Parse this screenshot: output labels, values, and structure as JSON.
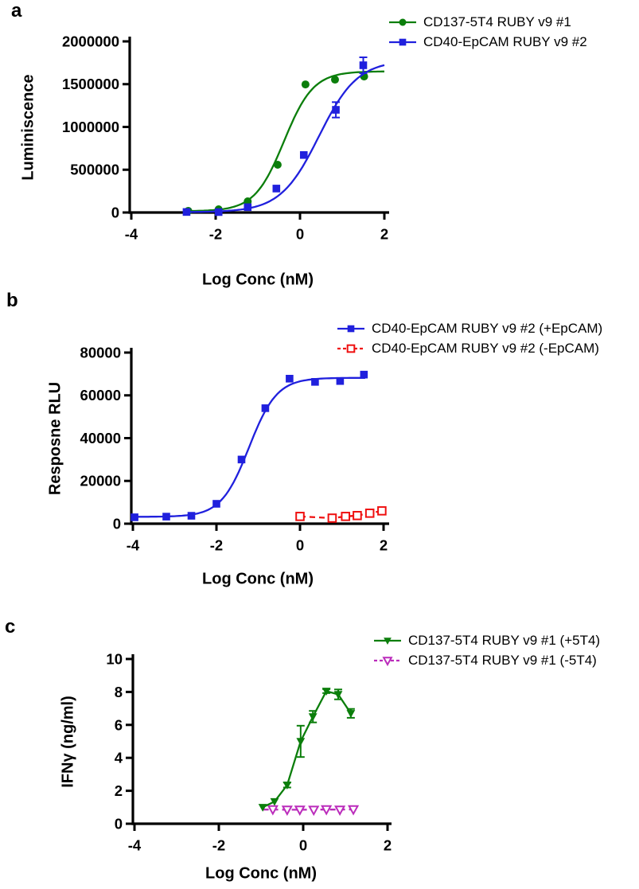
{
  "chart_data": [
    {
      "type": "line",
      "letter": "a",
      "x_axis": {
        "title": "Log Conc (nM)",
        "min": -4,
        "max": 2,
        "ticks": [
          -4,
          -2,
          0,
          2
        ]
      },
      "y_axis": {
        "title": "Luminiscence",
        "min": 0,
        "max": 2000000,
        "ticks": [
          0,
          500000,
          1000000,
          1500000,
          2000000
        ]
      },
      "legend_position": "top-right",
      "grid": false,
      "series": [
        {
          "name": "CD137-5T4 RUBY v9 #1",
          "color": "#0b7e0b",
          "marker": "circle",
          "marker_fill": "filled",
          "line": "solid",
          "curve": "sigmoid",
          "fit": {
            "bottom": 15000,
            "top": 1650000,
            "logec50": -0.38,
            "hill": 1.25,
            "x_from": -2.7,
            "x_to": 2.0
          },
          "x": [
            -2.65,
            -1.93,
            -1.24,
            -0.53,
            0.13,
            0.83,
            1.52
          ],
          "y": [
            19000,
            37000,
            130000,
            558000,
            1497000,
            1553000,
            1590000
          ]
        },
        {
          "name": "CD40-EpCAM RUBY v9 #2",
          "color": "#2020dd",
          "marker": "square",
          "marker_fill": "filled",
          "line": "solid",
          "curve": "sigmoid",
          "fit": {
            "bottom": 4000,
            "top": 1780000,
            "logec50": 0.45,
            "hill": 0.95,
            "x_from": -2.72,
            "x_to": 2.0
          },
          "x": [
            -2.69,
            -1.93,
            -1.24,
            -0.56,
            0.09,
            0.85,
            1.5
          ],
          "y": [
            6000,
            5000,
            62000,
            280000,
            672000,
            1200000,
            1721000
          ],
          "err": [
            0,
            0,
            0,
            0,
            0,
            90000,
            93000
          ]
        }
      ]
    },
    {
      "type": "line",
      "letter": "b",
      "x_axis": {
        "title": "Log Conc (nM)",
        "min": -4,
        "max": 2,
        "ticks": [
          -4,
          -2,
          0,
          2
        ]
      },
      "y_axis": {
        "title": "Resposne RLU",
        "min": 0,
        "max": 80000,
        "ticks": [
          0,
          20000,
          40000,
          60000,
          80000
        ]
      },
      "legend_position": "top-right",
      "grid": false,
      "series": [
        {
          "name": "CD40-EpCAM RUBY v9 #2 (+EpCAM)",
          "color": "#2020dd",
          "marker": "square",
          "marker_fill": "filled",
          "line": "solid",
          "curve": "sigmoid",
          "fit": {
            "bottom": 3200,
            "top": 68200,
            "logec50": -1.22,
            "hill": 1.3,
            "x_from": -4.0,
            "x_to": 1.56
          },
          "x": [
            -3.96,
            -3.2,
            -2.6,
            -2.0,
            -1.4,
            -0.83,
            -0.25,
            0.36,
            0.96,
            1.53
          ],
          "y": [
            3000,
            3300,
            3700,
            9300,
            30000,
            54000,
            67800,
            66300,
            66700,
            69700
          ]
        },
        {
          "name": "CD40-EpCAM RUBY v9 #2 (-EpCAM)",
          "color": "#ef1010",
          "marker": "square",
          "marker_fill": "open",
          "line": "dashed",
          "curve": "polyline",
          "x": [
            0,
            0.77,
            1.09,
            1.37,
            1.67,
            1.96
          ],
          "y": [
            3400,
            2600,
            3400,
            3800,
            4900,
            6000
          ]
        }
      ]
    },
    {
      "type": "line",
      "letter": "c",
      "x_axis": {
        "title": "Log Conc (nM)",
        "min": -4,
        "max": 2,
        "ticks": [
          -4,
          -2,
          0,
          2
        ]
      },
      "y_axis": {
        "title": "IFNγ (ng/ml)",
        "min": 0,
        "max": 10,
        "ticks": [
          0,
          2,
          4,
          6,
          8,
          10
        ]
      },
      "legend_position": "top-right",
      "grid": false,
      "series": [
        {
          "name": "CD137-5T4 RUBY v9 #1 (+5T4)",
          "color": "#0b7e0b",
          "marker": "triangle-down",
          "marker_fill": "filled",
          "line": "solid",
          "curve": "polyline",
          "z": 1,
          "x": [
            -0.96,
            -0.68,
            -0.38,
            -0.06,
            0.23,
            0.55,
            0.83,
            1.13
          ],
          "y": [
            1.0,
            1.35,
            2.35,
            5.0,
            6.5,
            8.05,
            7.85,
            6.7
          ],
          "err": [
            0,
            0,
            0.15,
            0.95,
            0.35,
            0.12,
            0.3,
            0.27
          ]
        },
        {
          "name": "CD137-5T4 RUBY v9 #1 (-5T4)",
          "color": "#bb2cbb",
          "marker": "triangle-down",
          "marker_fill": "open",
          "line": "dashed",
          "curve": "polyline",
          "z": 0,
          "line_x": [
            -0.95,
            -0.72,
            -0.38,
            -0.08,
            0.25,
            0.55,
            0.87,
            1.19
          ],
          "line_y": [
            0.86,
            0.86,
            0.85,
            0.85,
            0.86,
            0.86,
            0.86,
            0.87
          ],
          "x": [
            -0.72,
            -0.38,
            -0.08,
            0.25,
            0.55,
            0.87,
            1.19
          ],
          "y": [
            0.87,
            0.85,
            0.85,
            0.84,
            0.87,
            0.85,
            0.87
          ]
        }
      ]
    }
  ]
}
